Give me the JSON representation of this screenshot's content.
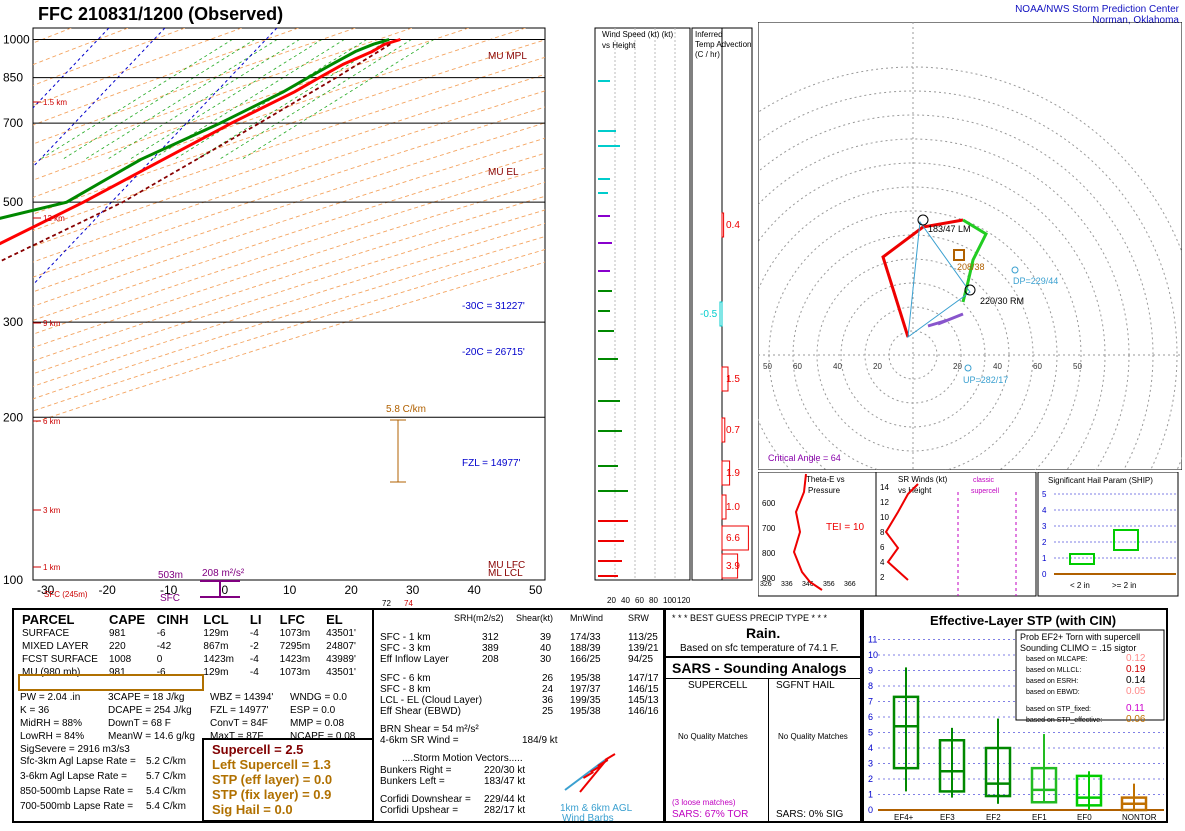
{
  "header": {
    "title": "FFC  210831/1200  (Observed)",
    "org_line1": "NOAA/NWS Storm Prediction Center",
    "org_line2": "Norman, Oklahoma"
  },
  "colors": {
    "temp": "#ff0000",
    "dew": "#008800",
    "virtual": "#cc0000",
    "parcel": "#880000",
    "grid": "#000000",
    "accent": "#0000cc",
    "brown": "#b06000"
  },
  "chart_data": [
    {
      "type": "line",
      "title": "Skew-T Log-P",
      "pressure_levels": [
        100,
        200,
        300,
        500,
        700,
        850,
        1000
      ],
      "x_ticks": [
        -30,
        -20,
        -10,
        0,
        10,
        20,
        30,
        40,
        50
      ],
      "height_labels": [
        "1.5 km",
        "12 km",
        "9 km",
        "6 km",
        "3 km",
        "1 km"
      ],
      "annotations": [
        "MU MPL",
        "MU EL",
        "-30C = 31227'",
        "-20C = 26715'",
        "FZL = 14977'",
        "MU LFC",
        "ML LCL",
        "5.8 C/km",
        "503m",
        "208 m²/s²",
        "SFC",
        "SFC (245m)",
        "72",
        "74"
      ],
      "series": [
        {
          "name": "temperature",
          "pressure": [
            1000,
            980,
            950,
            900,
            850,
            800,
            700,
            600,
            500,
            400,
            300,
            250,
            200,
            150,
            120,
            100
          ],
          "values": [
            24,
            22,
            21,
            18,
            16,
            14,
            8,
            2,
            -5,
            -15,
            -31,
            -40,
            -53,
            -58,
            -57,
            -55
          ]
        },
        {
          "name": "dewpoint",
          "pressure": [
            1000,
            980,
            950,
            900,
            850,
            800,
            700,
            600,
            500,
            450,
            400,
            350,
            300,
            250,
            200,
            150,
            120,
            100
          ],
          "values": [
            22,
            20,
            18,
            16,
            14,
            12,
            6,
            -2,
            -8,
            -22,
            -30,
            -42,
            -45,
            -52,
            -60,
            -70,
            -78,
            -82
          ]
        },
        {
          "name": "parcel",
          "pressure": [
            980,
            850,
            700,
            500,
            300,
            200,
            100
          ],
          "values": [
            23,
            19,
            13,
            2,
            -22,
            -42,
            -68
          ]
        }
      ]
    },
    {
      "type": "bar",
      "title": "Wind Speed (kt) vs Height",
      "x_ticks": [
        "20",
        "40",
        "60",
        "80",
        "100",
        "120"
      ]
    },
    {
      "type": "line",
      "title": "Inferred Temp Advection (C / hr)",
      "values": [
        "0.4",
        "-0.5",
        "1.5",
        "0.7",
        "1.9",
        "1.0",
        "6.6",
        "3.9"
      ]
    },
    {
      "type": "scatter",
      "title": "Hodograph",
      "labels": [
        "183/47 LM",
        "220/30 RM",
        "DP=229/44",
        "UP=282/17",
        "208/38",
        "Critical Angle = 64"
      ]
    },
    {
      "type": "line",
      "title": "Theta-E vs Pressure",
      "labels": [
        "TEI = 10"
      ],
      "x_ticks": [
        "326",
        "336",
        "346",
        "356",
        "366"
      ],
      "y_ticks": [
        "600",
        "700",
        "800",
        "900"
      ]
    },
    {
      "type": "line",
      "title": "SR Winds (kt) vs Height",
      "labels": [
        "classic",
        "supercell"
      ],
      "y_ticks": [
        "14",
        "12",
        "10",
        "8",
        "6",
        "4",
        "2"
      ]
    },
    {
      "type": "bar",
      "title": "Significant Hail Param (SHIP)",
      "categories": [
        "< 2 in",
        ">= 2 in"
      ],
      "y_ticks": [
        "5",
        "4",
        "3",
        "2",
        "1",
        "0"
      ]
    },
    {
      "type": "bar",
      "title": "Effective-Layer STP (with CIN)",
      "categories": [
        "EF4+",
        "EF3",
        "EF2",
        "EF1",
        "EF0",
        "NONTOR"
      ],
      "y_ticks": [
        "11",
        "10",
        "9",
        "8",
        "7",
        "6",
        "5",
        "4",
        "3",
        "2",
        "1",
        "0"
      ]
    }
  ],
  "parcel": {
    "headers": [
      "PARCEL",
      "CAPE",
      "CINH",
      "LCL",
      "LI",
      "LFC",
      "EL"
    ],
    "rows": [
      [
        "SURFACE",
        "981",
        "-6",
        "129m",
        "-4",
        "1073m",
        "43501'"
      ],
      [
        "MIXED LAYER",
        "220",
        "-42",
        "867m",
        "-2",
        "7295m",
        "24807'"
      ],
      [
        "FCST SURFACE",
        "1008",
        "0",
        "1423m",
        "-4",
        "1423m",
        "43989'"
      ],
      [
        "MU   (980 mb)",
        "981",
        "-6",
        "129m",
        "-4",
        "1073m",
        "43501'"
      ]
    ],
    "indices": [
      [
        "PW = 2.04 .in",
        "3CAPE = 18 J/kg",
        "WBZ = 14394'",
        "WNDG = 0.0"
      ],
      [
        "K = 36",
        "DCAPE = 254 J/kg",
        "FZL = 14977'",
        "ESP = 0.0"
      ],
      [
        "MidRH = 88%",
        "DownT = 68 F",
        "ConvT = 84F",
        "MMP = 0.08"
      ],
      [
        "LowRH = 84%",
        "MeanW = 14.6 g/kg",
        "MaxT = 87F",
        "NCAPE = 0.08"
      ],
      [
        "SigSevere = 2916 m3/s3",
        "",
        "",
        ""
      ]
    ],
    "lapse": [
      [
        "Sfc-3km Agl Lapse Rate =",
        "5.2 C/km"
      ],
      [
        "3-6km Agl Lapse Rate =",
        "5.7 C/km"
      ],
      [
        "850-500mb Lapse Rate =",
        "5.4 C/km"
      ],
      [
        "700-500mb Lapse Rate =",
        "5.4 C/km"
      ]
    ],
    "composites": [
      "Supercell = 2.5",
      "Left Supercell = 1.3",
      "STP (eff layer) = 0.0",
      "STP (fix layer) = 0.9",
      "Sig Hail = 0.0"
    ]
  },
  "kinematics": {
    "headers": [
      "SRH(m2/s2)",
      "Shear(kt)",
      "MnWind",
      "SRW"
    ],
    "rows": [
      [
        "SFC - 1 km",
        "312",
        "39",
        "174/33",
        "113/25"
      ],
      [
        "SFC - 3 km",
        "389",
        "40",
        "188/39",
        "139/21"
      ],
      [
        "Eff Inflow Layer",
        "208",
        "30",
        "166/25",
        "94/25"
      ],
      [
        "SFC - 6 km",
        "26",
        "195/38",
        "147/17",
        ""
      ],
      [
        "SFC - 8 km",
        "24",
        "197/37",
        "146/15",
        ""
      ],
      [
        "LCL - EL (Cloud Layer)",
        "36",
        "199/35",
        "145/13",
        ""
      ],
      [
        "Eff Shear (EBWD)",
        "25",
        "195/38",
        "146/16",
        ""
      ]
    ],
    "brn_shear": "BRN Shear =  54 m²/s²",
    "wind_4_6": "4-6km SR Wind =",
    "wind_4_6_val": "184/9 kt",
    "storm_title": "....Storm Motion Vectors.....",
    "storm": [
      [
        "Bunkers Right =",
        "220/30 kt"
      ],
      [
        "Bunkers Left =",
        "183/47 kt"
      ],
      [
        "Corfidi Downshear =",
        "229/44 kt"
      ],
      [
        "Corfidi Upshear =",
        "282/17 kt"
      ]
    ],
    "barb_label1": "1km & 6km AGL",
    "barb_label2": "Wind Barbs"
  },
  "precip": {
    "title": "* * * BEST GUESS PRECIP TYPE * * *",
    "value": "Rain.",
    "note": "Based on sfc temperature of 74.1 F."
  },
  "sars": {
    "title": "SARS - Sounding Analogs",
    "col1": "SUPERCELL",
    "col2": "SGFNT HAIL",
    "nomatch": "No Quality Matches",
    "loose": "(3 loose matches)",
    "tor": "SARS:  67% TOR",
    "sig": "SARS:  0% SIG"
  },
  "stp": {
    "title": "Effective-Layer STP (with CIN)",
    "prob_title1": "Prob EF2+ Torn with supercell",
    "prob_title2": "Sounding CLIMO = .15 sigtor",
    "probs": [
      [
        "based on MLCAPE:",
        "0.12"
      ],
      [
        "based on MLLCL:",
        "0.19"
      ],
      [
        "based on ESRH:",
        "0.14"
      ],
      [
        "based on EBWD:",
        "0.05"
      ],
      [
        "based on STP_fixed:",
        "0.11"
      ],
      [
        "based on STP_effective:",
        "0.06"
      ]
    ]
  }
}
